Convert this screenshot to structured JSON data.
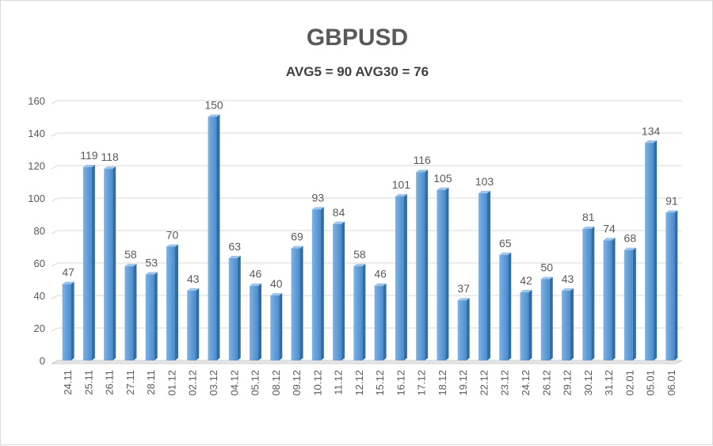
{
  "chart_data": {
    "type": "bar",
    "title": "GBPUSD",
    "subtitle": "AVG5 = 90 AVG30 = 76",
    "categories": [
      "24.11",
      "25.11",
      "26.11",
      "27.11",
      "28.11",
      "01.12",
      "02.12",
      "03.12",
      "04.12",
      "05.12",
      "08.12",
      "09.12",
      "10.12",
      "11.12",
      "12.12",
      "15.12",
      "16.12",
      "17.12",
      "18.12",
      "19.12",
      "22.12",
      "23.12",
      "24.12",
      "26.12",
      "29.12",
      "30.12",
      "31.12",
      "02.01",
      "05.01",
      "06.01"
    ],
    "values": [
      47,
      119,
      118,
      58,
      53,
      70,
      43,
      150,
      63,
      46,
      40,
      69,
      93,
      84,
      58,
      46,
      101,
      116,
      105,
      37,
      103,
      65,
      42,
      50,
      43,
      81,
      74,
      68,
      134,
      91
    ],
    "ylim": [
      0,
      160
    ],
    "yticks": [
      0,
      20,
      40,
      60,
      80,
      100,
      120,
      140,
      160
    ],
    "grid": true,
    "bar_color": "#5b9bd5",
    "xlabel": "",
    "ylabel": ""
  }
}
